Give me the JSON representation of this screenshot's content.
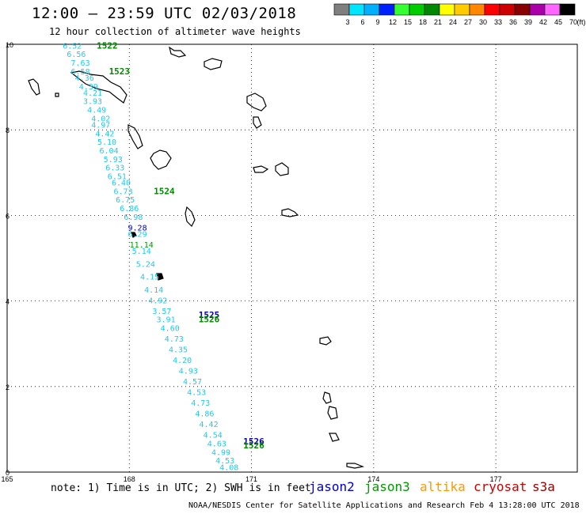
{
  "title": "12:00 – 23:59 UTC 02/03/2018",
  "subtitle": "12 hour collection of altimeter wave heights",
  "note": "note: 1) Time is in UTC; 2) SWH is in feet",
  "credit": "NOAA/NESDIS Center for Satellite Applications and Research   Feb  4 13:28:00 UTC 2018",
  "satellites": [
    {
      "name": "jason2",
      "color": "#0000cc"
    },
    {
      "name": "jason3",
      "color": "#009900"
    },
    {
      "name": "altika",
      "color": "#ff9900"
    },
    {
      "name": "cryosat",
      "color": "#cc0000"
    },
    {
      "name": "s3a",
      "color": "#990000"
    }
  ],
  "colorbar": {
    "unit": "(ft)",
    "labels": [
      "3",
      "6",
      "9",
      "12",
      "15",
      "18",
      "21",
      "24",
      "27",
      "30",
      "33",
      "36",
      "39",
      "42",
      "45",
      "70"
    ],
    "colors": [
      "#7f7f7f",
      "#00e5ff",
      "#00b0ff",
      "#0020ff",
      "#33ff33",
      "#00cc00",
      "#008800",
      "#ffff00",
      "#ffcc00",
      "#ff8800",
      "#ff0000",
      "#cc0000",
      "#880000",
      "#aa00aa",
      "#ff66ff",
      "#000000"
    ]
  },
  "axes": {
    "x_ticks": [
      "165",
      "168",
      "171",
      "174",
      "177"
    ],
    "y_ticks": [
      "0",
      "2",
      "4",
      "6",
      "8",
      "10"
    ]
  },
  "chart_data": {
    "type": "scatter",
    "title": "12:00 – 23:59 UTC 02/03/2018",
    "xlim": [
      165,
      179
    ],
    "ylim": [
      0,
      10
    ],
    "time_labels": [
      {
        "text": "1522",
        "lon": 167.2,
        "lat": 9.9,
        "color": "#008800"
      },
      {
        "text": "1523",
        "lon": 167.5,
        "lat": 9.3,
        "color": "#008800"
      },
      {
        "text": "1524",
        "lon": 168.6,
        "lat": 6.5,
        "color": "#008800"
      },
      {
        "text": "1525",
        "lon": 169.7,
        "lat": 3.6,
        "color": "#0000aa"
      },
      {
        "text": "1526",
        "lon": 169.7,
        "lat": 3.5,
        "color": "#008800"
      },
      {
        "text": "1526",
        "lon": 170.8,
        "lat": 0.65,
        "color": "#0000aa"
      },
      {
        "text": "1526",
        "lon": 170.8,
        "lat": 0.55,
        "color": "#008800"
      }
    ],
    "series": [
      {
        "color": "#22c8e8",
        "points": [
          {
            "lon": 166.6,
            "lat": 9.9,
            "swh": 6.52
          },
          {
            "lon": 166.7,
            "lat": 9.7,
            "swh": 6.56
          },
          {
            "lon": 166.8,
            "lat": 9.5,
            "swh": 7.63
          },
          {
            "lon": 166.8,
            "lat": 9.3,
            "swh": 6.58
          },
          {
            "lon": 166.9,
            "lat": 9.15,
            "swh": 4.36
          },
          {
            "lon": 167.0,
            "lat": 8.95,
            "swh": 4.39
          },
          {
            "lon": 167.1,
            "lat": 8.8,
            "swh": 4.21
          },
          {
            "lon": 167.1,
            "lat": 8.6,
            "swh": 3.93
          },
          {
            "lon": 167.2,
            "lat": 8.4,
            "swh": 4.49
          },
          {
            "lon": 167.3,
            "lat": 8.2,
            "swh": 4.02
          },
          {
            "lon": 167.3,
            "lat": 8.05,
            "swh": 4.97
          },
          {
            "lon": 167.4,
            "lat": 7.85,
            "swh": 4.42
          },
          {
            "lon": 167.45,
            "lat": 7.65,
            "swh": 5.1
          },
          {
            "lon": 167.5,
            "lat": 7.45,
            "swh": 6.04
          },
          {
            "lon": 167.6,
            "lat": 7.25,
            "swh": 5.93
          },
          {
            "lon": 167.65,
            "lat": 7.05,
            "swh": 6.33
          },
          {
            "lon": 167.7,
            "lat": 6.85,
            "swh": 6.51
          },
          {
            "lon": 167.8,
            "lat": 6.7,
            "swh": 6.4
          },
          {
            "lon": 167.85,
            "lat": 6.5,
            "swh": 6.73
          },
          {
            "lon": 167.9,
            "lat": 6.3,
            "swh": 6.75
          },
          {
            "lon": 168.0,
            "lat": 6.1,
            "swh": 6.86
          },
          {
            "lon": 168.1,
            "lat": 5.9,
            "swh": 6.98
          },
          {
            "lon": 168.2,
            "lat": 5.5,
            "swh": 6.29
          },
          {
            "lon": 168.3,
            "lat": 5.1,
            "swh": 5.14
          },
          {
            "lon": 168.4,
            "lat": 4.8,
            "swh": 5.24
          },
          {
            "lon": 168.5,
            "lat": 4.5,
            "swh": 4.15
          },
          {
            "lon": 168.6,
            "lat": 4.2,
            "swh": 4.14
          },
          {
            "lon": 168.7,
            "lat": 3.95,
            "swh": 4.92
          },
          {
            "lon": 168.8,
            "lat": 3.7,
            "swh": 3.57
          },
          {
            "lon": 168.9,
            "lat": 3.5,
            "swh": 3.91
          },
          {
            "lon": 169.0,
            "lat": 3.3,
            "swh": 4.6
          },
          {
            "lon": 169.1,
            "lat": 3.05,
            "swh": 4.73
          },
          {
            "lon": 169.2,
            "lat": 2.8,
            "swh": 4.35
          },
          {
            "lon": 169.3,
            "lat": 2.55,
            "swh": 4.2
          },
          {
            "lon": 169.45,
            "lat": 2.3,
            "swh": 4.93
          },
          {
            "lon": 169.55,
            "lat": 2.05,
            "swh": 4.57
          },
          {
            "lon": 169.65,
            "lat": 1.8,
            "swh": 4.53
          },
          {
            "lon": 169.75,
            "lat": 1.55,
            "swh": 4.73
          },
          {
            "lon": 169.85,
            "lat": 1.3,
            "swh": 4.86
          },
          {
            "lon": 169.95,
            "lat": 1.05,
            "swh": 4.42
          },
          {
            "lon": 170.05,
            "lat": 0.8,
            "swh": 4.54
          },
          {
            "lon": 170.15,
            "lat": 0.6,
            "swh": 4.63
          },
          {
            "lon": 170.25,
            "lat": 0.4,
            "swh": 4.99
          },
          {
            "lon": 170.35,
            "lat": 0.2,
            "swh": 4.53
          },
          {
            "lon": 170.45,
            "lat": 0.05,
            "swh": 4.08
          }
        ]
      },
      {
        "color": "#0000cc",
        "points": [
          {
            "lon": 168.2,
            "lat": 5.65,
            "swh": 9.28
          }
        ]
      },
      {
        "color": "#009900",
        "points": [
          {
            "lon": 168.3,
            "lat": 5.25,
            "swh": 11.14
          }
        ]
      }
    ]
  }
}
